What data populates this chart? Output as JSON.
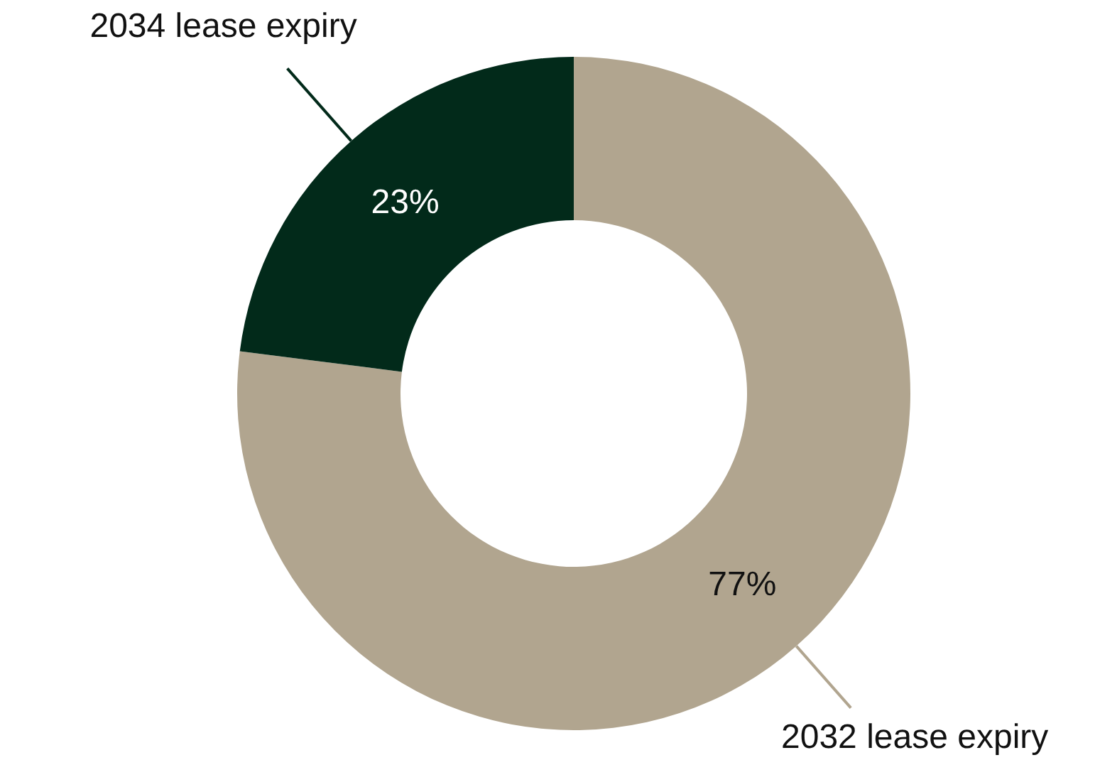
{
  "chart_data": {
    "type": "donut",
    "categories": [
      "2032 lease expiry",
      "2034 lease expiry"
    ],
    "values": [
      77,
      23
    ],
    "colors": [
      "#b1a58f",
      "#022a1a"
    ],
    "value_labels": [
      "77%",
      "23%"
    ]
  }
}
